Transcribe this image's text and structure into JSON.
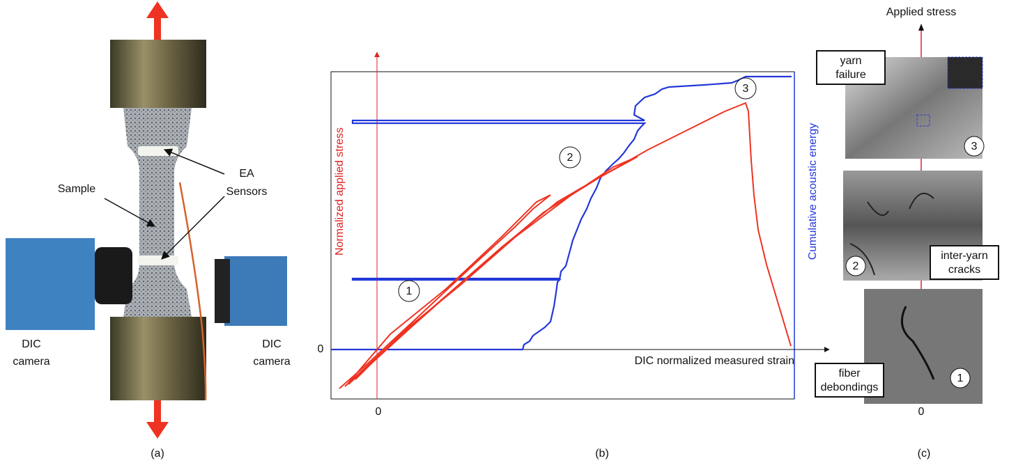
{
  "panel_a": {
    "sample_label": "Sample",
    "sensors_label": [
      "EA",
      "Sensors"
    ],
    "camera_left_label": [
      "DIC",
      "camera"
    ],
    "camera_right_label": [
      "DIC",
      "camera"
    ],
    "caption": "(a)"
  },
  "panel_b": {
    "y_axis_label": "Normalized applied stress",
    "y2_axis_label": "Cumulative acoustic energy",
    "x_axis_label": "DIC normalized measured strain",
    "y_zero_label": "0",
    "x_zero_label": "0",
    "markers": [
      "1",
      "2",
      "3"
    ],
    "caption": "(b)"
  },
  "panel_c": {
    "axis_label": "Applied stress",
    "zero_label": "0",
    "images": [
      {
        "label": [
          "yarn",
          "failure"
        ],
        "number": "3"
      },
      {
        "label": [
          "inter-yarn",
          "cracks"
        ],
        "number": "2"
      },
      {
        "label": [
          "fiber",
          "debondings"
        ],
        "number": "1"
      }
    ],
    "caption": "(c)"
  }
}
